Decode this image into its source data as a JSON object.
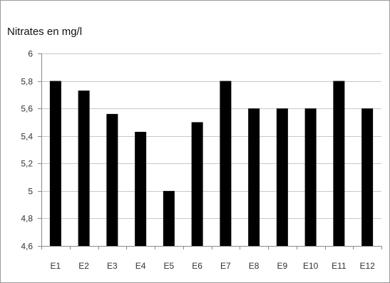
{
  "chart_data": {
    "type": "bar",
    "title": "Nitrates en mg/l",
    "xlabel": "",
    "ylabel": "",
    "categories": [
      "E1",
      "E2",
      "E3",
      "E4",
      "E5",
      "E6",
      "E7",
      "E8",
      "E9",
      "E10",
      "E11",
      "E12"
    ],
    "values": [
      5.8,
      5.73,
      5.56,
      5.43,
      5.0,
      5.5,
      5.8,
      5.6,
      5.6,
      5.6,
      5.8,
      5.6
    ],
    "ylim": [
      4.6,
      6.0
    ],
    "yticks": [
      4.6,
      4.8,
      5.0,
      5.2,
      5.4,
      5.6,
      5.8,
      6.0
    ],
    "ytick_labels": [
      "4,6",
      "4,8",
      "5",
      "5,2",
      "5,4",
      "5,6",
      "5,8",
      "6"
    ],
    "grid": true,
    "legend": "none",
    "bar_color": "#000000",
    "grid_color": "#c8c8c8"
  }
}
